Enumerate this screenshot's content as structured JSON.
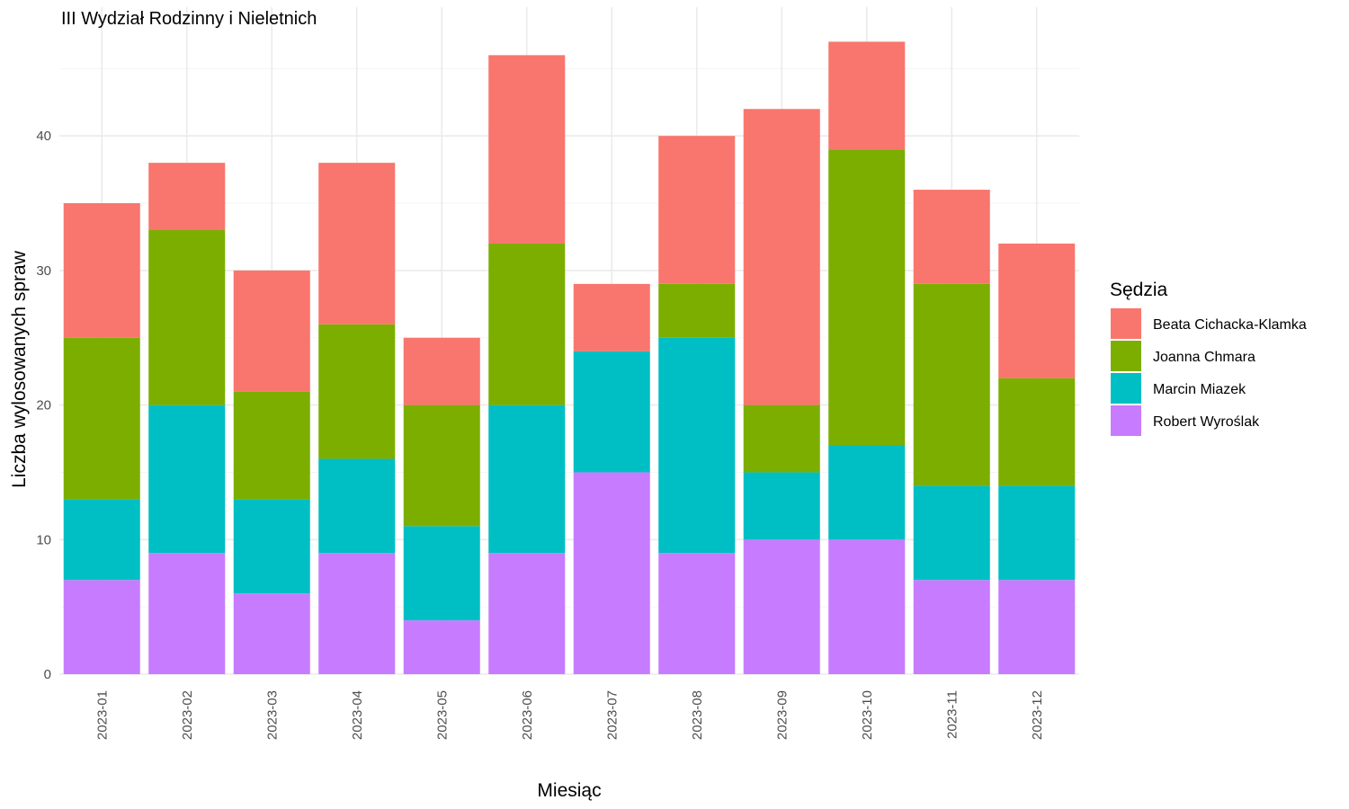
{
  "chart_data": {
    "type": "bar",
    "stacked": true,
    "title": "III Wydział Rodzinny i Nieletnich",
    "xlabel": "Miesiąc",
    "ylabel": "Liczba wylosowanych spraw",
    "ylim": [
      0,
      47
    ],
    "yticks": [
      "0",
      "10",
      "20",
      "30",
      "40"
    ],
    "grid": true,
    "legend_title": "Sędzia",
    "legend_position": "right",
    "categories": [
      "2023-01",
      "2023-02",
      "2023-03",
      "2023-04",
      "2023-05",
      "2023-06",
      "2023-07",
      "2023-08",
      "2023-09",
      "2023-10",
      "2023-11",
      "2023-12"
    ],
    "series": [
      {
        "name": "Beata Cichacka-Klamka",
        "color": "#F8766D",
        "values": [
          10,
          5,
          9,
          12,
          5,
          14,
          5,
          11,
          22,
          8,
          7,
          10
        ]
      },
      {
        "name": "Joanna Chmara",
        "color": "#7CAE00",
        "values": [
          12,
          13,
          8,
          10,
          9,
          12,
          0,
          4,
          5,
          22,
          15,
          8
        ]
      },
      {
        "name": "Marcin Miazek",
        "color": "#00BFC4",
        "values": [
          6,
          11,
          7,
          7,
          7,
          11,
          9,
          16,
          5,
          7,
          7,
          7
        ]
      },
      {
        "name": "Robert Wyroślak",
        "color": "#C77CFF",
        "values": [
          7,
          9,
          6,
          9,
          4,
          9,
          15,
          9,
          10,
          10,
          7,
          7
        ]
      }
    ]
  }
}
